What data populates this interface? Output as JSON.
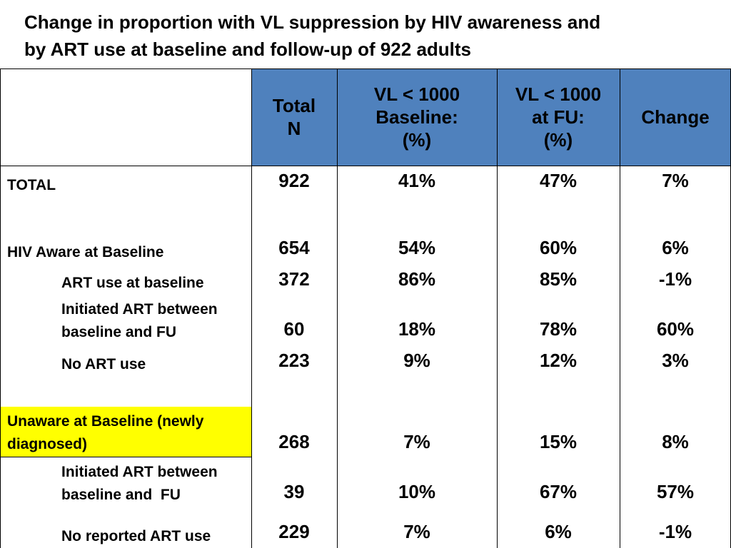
{
  "title": {
    "line1": "Change in proportion with VL suppression by HIV awareness and",
    "line2": "by ART use at baseline and follow-up of 922 adults"
  },
  "header": {
    "total_n": [
      "Total",
      "N"
    ],
    "vl_baseline": [
      "VL < 1000",
      "Baseline:",
      "(%)"
    ],
    "vl_fu": [
      "VL < 1000",
      "at FU:",
      "(%)"
    ],
    "change": [
      "Change"
    ]
  },
  "rows": [
    {
      "label": [
        "TOTAL"
      ],
      "total_n": "922",
      "vl_baseline": "41%",
      "vl_fu": "47%",
      "change": "7%"
    },
    {
      "label": [
        "HIV Aware at Baseline"
      ],
      "total_n": "654",
      "vl_baseline": "54%",
      "vl_fu": "60%",
      "change": "6%"
    },
    {
      "label": [
        "ART use at baseline"
      ],
      "total_n": "372",
      "vl_baseline": "86%",
      "vl_fu": "85%",
      "change": "-1%"
    },
    {
      "label": [
        "Initiated ART between",
        "baseline and FU"
      ],
      "total_n": "60",
      "vl_baseline": "18%",
      "vl_fu": "78%",
      "change": "60%"
    },
    {
      "label": [
        "No ART use"
      ],
      "total_n": "223",
      "vl_baseline": "9%",
      "vl_fu": "12%",
      "change": "3%"
    },
    {
      "label": [
        "Unaware at Baseline (newly",
        "diagnosed)"
      ],
      "total_n": "268",
      "vl_baseline": "7%",
      "vl_fu": "15%",
      "change": "8%"
    },
    {
      "label": [
        "Initiated ART between",
        "baseline and  FU"
      ],
      "total_n": "39",
      "vl_baseline": "10%",
      "vl_fu": "67%",
      "change": "57%"
    },
    {
      "label": [
        "No reported ART use"
      ],
      "total_n": "229",
      "vl_baseline": "7%",
      "vl_fu": "6%",
      "change": "-1%"
    }
  ],
  "colors": {
    "header_fill": "#4f81bd",
    "highlight_fill": "#ffff00",
    "border": "#000000"
  }
}
